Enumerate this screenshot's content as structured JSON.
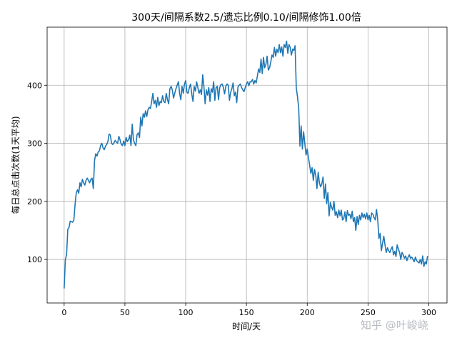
{
  "watermark": "知乎 @叶峻峣",
  "chart_data": {
    "type": "line",
    "title": "300天/间隔系数2.5/遗忘比例0.10/间隔修饰1.00倍",
    "xlabel": "时间/天",
    "ylabel": "每日总点击次数(1天平均)",
    "xlim": [
      -14,
      315
    ],
    "ylim": [
      25,
      500
    ],
    "xticks": [
      0,
      50,
      100,
      150,
      200,
      250,
      300
    ],
    "yticks": [
      100,
      200,
      300,
      400
    ],
    "grid": true,
    "line_color": "#1f77b4",
    "series": [
      {
        "values": [
          50,
          100,
          108,
          152,
          155,
          166,
          165,
          164,
          168,
          195,
          215,
          220,
          214,
          232,
          225,
          238,
          232,
          228,
          236,
          240,
          236,
          232,
          238,
          240,
          222,
          270,
          282,
          278,
          285,
          287,
          296,
          300,
          292,
          289,
          295,
          298,
          303,
          316,
          314,
          300,
          298,
          301,
          305,
          302,
          300,
          312,
          306,
          298,
          296,
          304,
          296,
          310,
          303,
          306,
          314,
          296,
          333,
          306,
          300,
          296,
          315,
          318,
          310,
          345,
          330,
          351,
          345,
          356,
          346,
          358,
          362,
          360,
          372,
          386,
          368,
          374,
          362,
          379,
          365,
          372,
          370,
          382,
          372,
          370,
          386,
          375,
          368,
          394,
          398,
          392,
          378,
          386,
          394,
          400,
          406,
          386,
          375,
          398,
          386,
          402,
          408,
          388,
          386,
          396,
          402,
          385,
          372,
          398,
          390,
          406,
          396,
          386,
          392,
          384,
          418,
          398,
          368,
          392,
          383,
          396,
          372,
          394,
          388,
          406,
          374,
          396,
          398,
          375,
          396,
          401,
          402,
          396,
          385,
          398,
          402,
          400,
          374,
          388,
          394,
          404,
          382,
          388,
          370,
          397,
          400,
          402,
          396,
          392,
          389,
          396,
          402,
          406,
          399,
          406,
          406,
          410,
          402,
          408,
          404,
          416,
          428,
          422,
          445,
          420,
          448,
          430,
          436,
          450,
          426,
          430,
          440,
          452,
          448,
          465,
          450,
          462,
          456,
          470,
          456,
          466,
          450,
          470,
          465,
          476,
          455,
          470,
          465,
          452,
          462,
          460,
          468,
          395,
          380,
          360,
          295,
          330,
          290,
          320,
          300,
          280,
          290,
          275,
          262,
          248,
          258,
          236,
          255,
          245,
          222,
          250,
          232,
          225,
          230,
          242,
          205,
          230,
          196,
          215,
          175,
          198,
          190,
          185,
          200,
          176,
          182,
          172,
          185,
          175,
          185,
          168,
          170,
          182,
          165,
          184,
          176,
          178,
          170,
          183,
          165,
          172,
          150,
          174,
          160,
          176,
          168,
          180,
          172,
          178,
          170,
          180,
          168,
          176,
          165,
          180,
          178,
          172,
          168,
          186,
          168,
          136,
          145,
          115,
          128,
          140,
          125,
          112,
          120,
          115,
          112,
          118,
          122,
          108,
          114,
          105,
          125,
          118,
          112,
          100,
          112,
          108,
          102,
          106,
          98,
          104,
          108,
          102,
          104,
          100,
          96,
          104,
          98,
          96,
          94,
          100,
          92,
          106,
          88,
          96,
          92,
          106
        ]
      }
    ]
  }
}
